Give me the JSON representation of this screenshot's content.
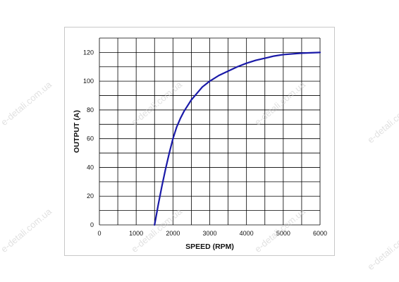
{
  "chart_data": {
    "type": "line",
    "title": "",
    "xlabel": "SPEED (RPM)",
    "ylabel": "OUTPUT (A)",
    "xlim": [
      0,
      6000
    ],
    "ylim": [
      0,
      130
    ],
    "x_ticks": [
      0,
      1000,
      2000,
      3000,
      4000,
      5000,
      6000
    ],
    "y_ticks": [
      0,
      20,
      40,
      60,
      80,
      100,
      120
    ],
    "x_grid_step": 500,
    "y_grid_step": 10,
    "grid": true,
    "series_color": "#1a1aa8",
    "series": [
      {
        "x": [
          1500,
          1600,
          1700,
          1800,
          1900,
          2000,
          2100,
          2200,
          2300,
          2400,
          2500,
          2600,
          2700,
          2800,
          2900,
          3000,
          3250,
          3500,
          3750,
          4000,
          4250,
          4500,
          4750,
          5000,
          5500,
          6000
        ],
        "y": [
          0,
          14,
          27,
          39,
          50,
          60,
          68,
          74,
          79,
          83,
          87,
          90,
          93,
          96,
          98,
          100,
          104,
          107,
          110,
          112.5,
          114.5,
          116,
          117.5,
          118.5,
          119.5,
          120
        ]
      }
    ]
  },
  "watermark": "e-detali.com.ua"
}
